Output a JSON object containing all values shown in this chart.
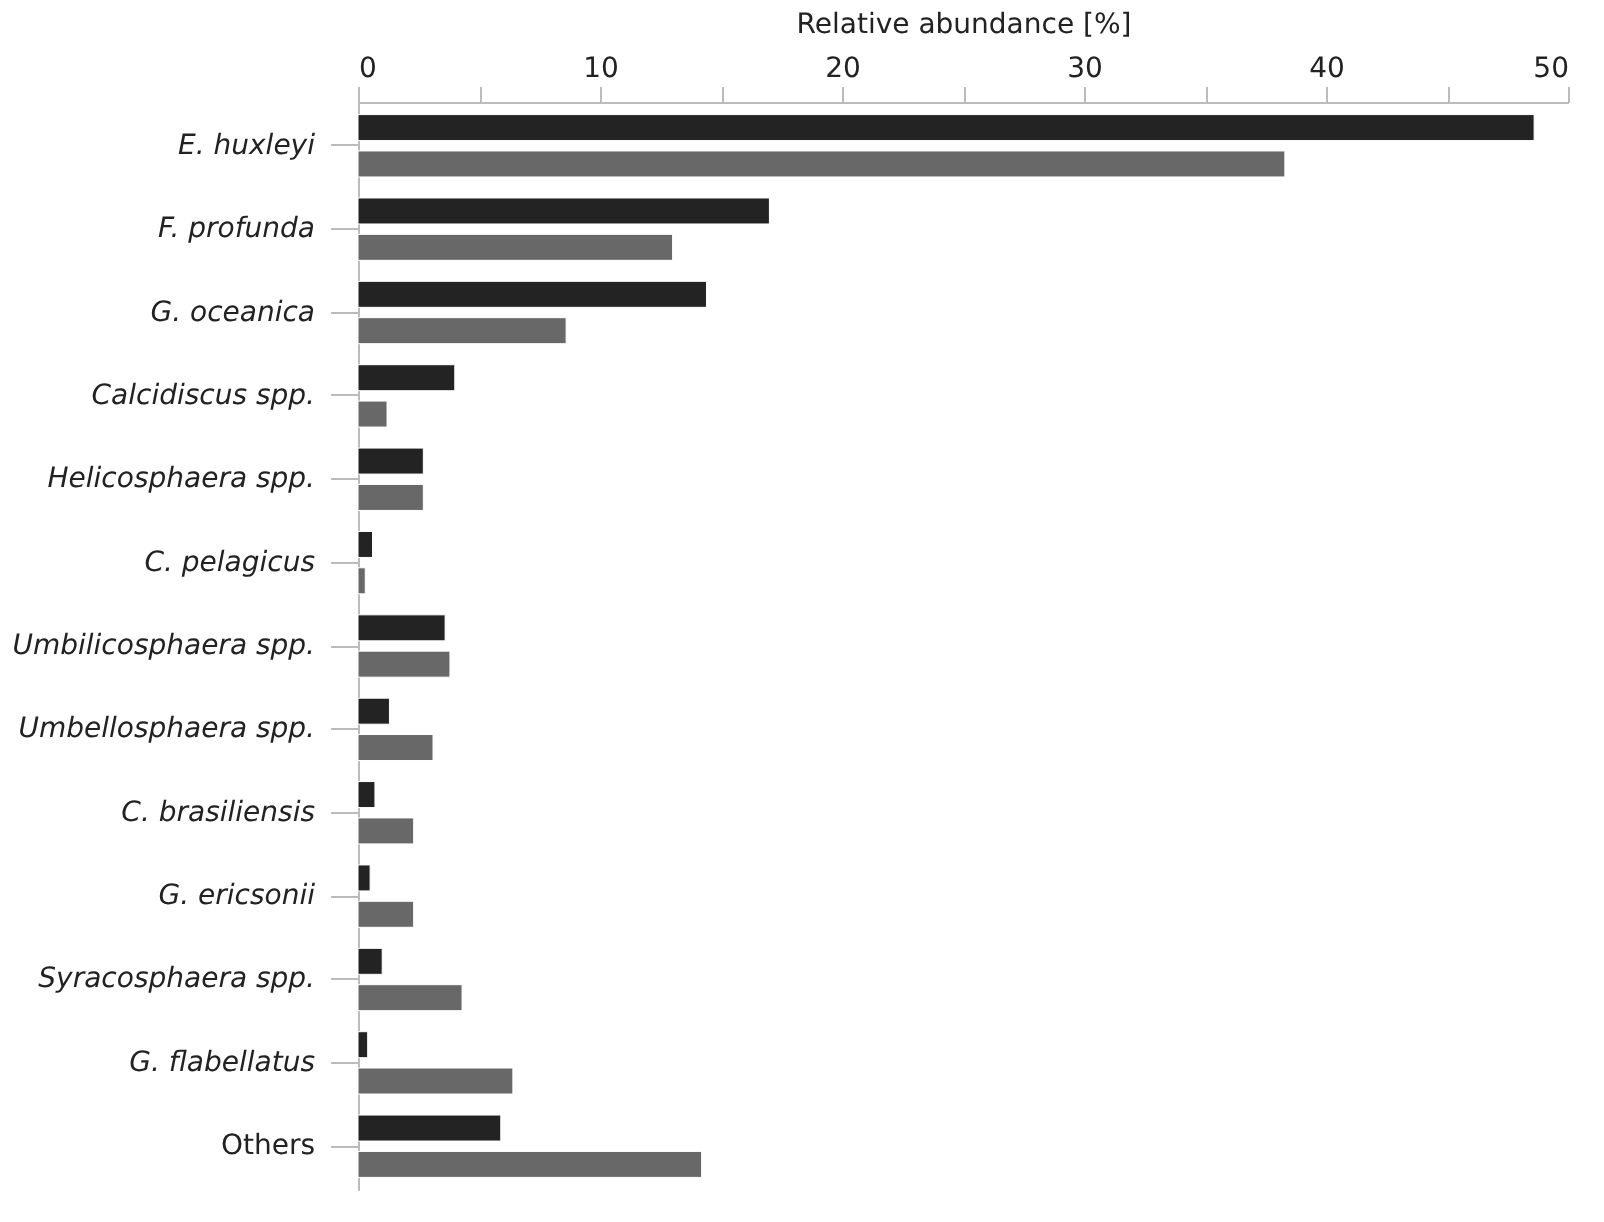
{
  "chart_data": {
    "type": "bar",
    "orientation": "horizontal",
    "xlabel": "Relative abundance [%]",
    "categories": [
      "E. huxleyi",
      "F. profunda",
      "G. oceanica",
      "Calcidiscus spp.",
      "Helicosphaera spp.",
      "C. pelagicus",
      "Umbilicosphaera spp.",
      "Umbellosphaera spp.",
      "C. brasiliensis",
      "G. ericsonii",
      "Syracosphaera spp.",
      "G. flabellatus",
      "Others"
    ],
    "series": [
      {
        "color": "#232323",
        "values": [
          48.6,
          17.0,
          14.4,
          4.0,
          2.7,
          0.6,
          3.6,
          1.3,
          0.7,
          0.5,
          1.0,
          0.4,
          5.9
        ]
      },
      {
        "color": "#686868",
        "values": [
          38.3,
          13.0,
          8.6,
          1.2,
          2.7,
          0.3,
          3.8,
          3.1,
          2.3,
          2.3,
          4.3,
          6.4,
          14.2
        ]
      }
    ],
    "xlim": [
      0,
      50
    ],
    "xticks": [
      0,
      {
        "value": 5,
        "label": null
      },
      10,
      {
        "value": 15,
        "label": null
      },
      20,
      {
        "value": 25,
        "label": null
      },
      30,
      {
        "value": 35,
        "label": null
      },
      40,
      {
        "value": 45,
        "label": null
      },
      50
    ],
    "grid": false
  }
}
